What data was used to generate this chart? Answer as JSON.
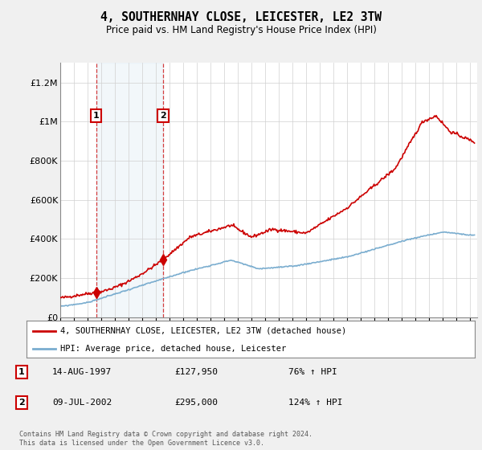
{
  "title": "4, SOUTHERNHAY CLOSE, LEICESTER, LE2 3TW",
  "subtitle": "Price paid vs. HM Land Registry's House Price Index (HPI)",
  "legend_label_red": "4, SOUTHERNHAY CLOSE, LEICESTER, LE2 3TW (detached house)",
  "legend_label_blue": "HPI: Average price, detached house, Leicester",
  "sale1_date": "14-AUG-1997",
  "sale1_price": 127950,
  "sale1_pct": "76%",
  "sale2_date": "09-JUL-2002",
  "sale2_price": 295000,
  "sale2_pct": "124%",
  "footer": "Contains HM Land Registry data © Crown copyright and database right 2024.\nThis data is licensed under the Open Government Licence v3.0.",
  "ylim_max": 1300000,
  "xlim_start": 1995.0,
  "xlim_end": 2025.5,
  "plot_bg_color": "#ffffff",
  "fig_bg_color": "#f0f0f0",
  "red_color": "#cc0000",
  "blue_color": "#7aadcf",
  "sale1_year": 1997.62,
  "sale2_year": 2002.52,
  "red_seed": 42,
  "blue_seed": 99,
  "red_noise_scale": 4000,
  "blue_noise_scale": 1500
}
